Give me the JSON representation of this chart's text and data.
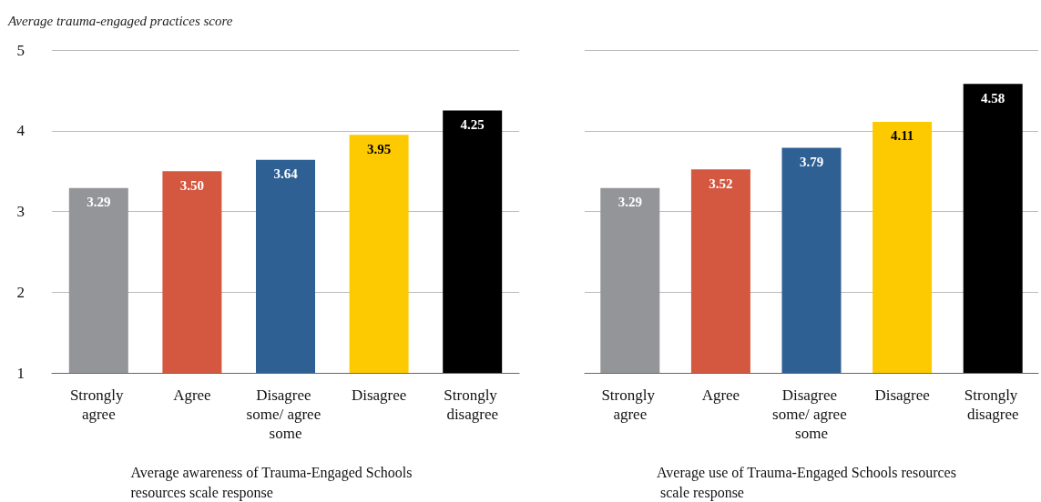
{
  "chart_data": [
    {
      "type": "bar",
      "ylabel": "Average trauma-engaged practices score",
      "xlabel": "Average awareness of Trauma-Engaged Schools resources scale response",
      "categories": [
        "Strongly agree",
        "Agree",
        "Disagree some/ agree some",
        "Disagree",
        "Strongly disagree"
      ],
      "values": [
        3.29,
        3.5,
        3.64,
        3.95,
        4.25
      ],
      "value_labels": [
        "3.29",
        "3.50",
        "3.64",
        "3.95",
        "4.25"
      ],
      "colors": [
        "#939598",
        "#d45740",
        "#2e6094",
        "#fdc900",
        "#000000"
      ],
      "ylim": [
        1,
        5
      ],
      "yticks": [
        1,
        2,
        3,
        4,
        5
      ],
      "grid": "y"
    },
    {
      "type": "bar",
      "xlabel": "Average use of Trauma-Engaged Schools resources scale response",
      "categories": [
        "Strongly agree",
        "Agree",
        "Disagree some/ agree some",
        "Disagree",
        "Strongly disagree"
      ],
      "values": [
        3.29,
        3.52,
        3.79,
        4.11,
        4.58
      ],
      "value_labels": [
        "3.29",
        "3.52",
        "3.79",
        "4.11",
        "4.58"
      ],
      "colors": [
        "#939598",
        "#d45740",
        "#2e6094",
        "#fdc900",
        "#000000"
      ],
      "ylim": [
        1,
        5
      ],
      "yticks": [
        1,
        2,
        3,
        4,
        5
      ],
      "grid": "y",
      "tick_labels": "x"
    }
  ]
}
